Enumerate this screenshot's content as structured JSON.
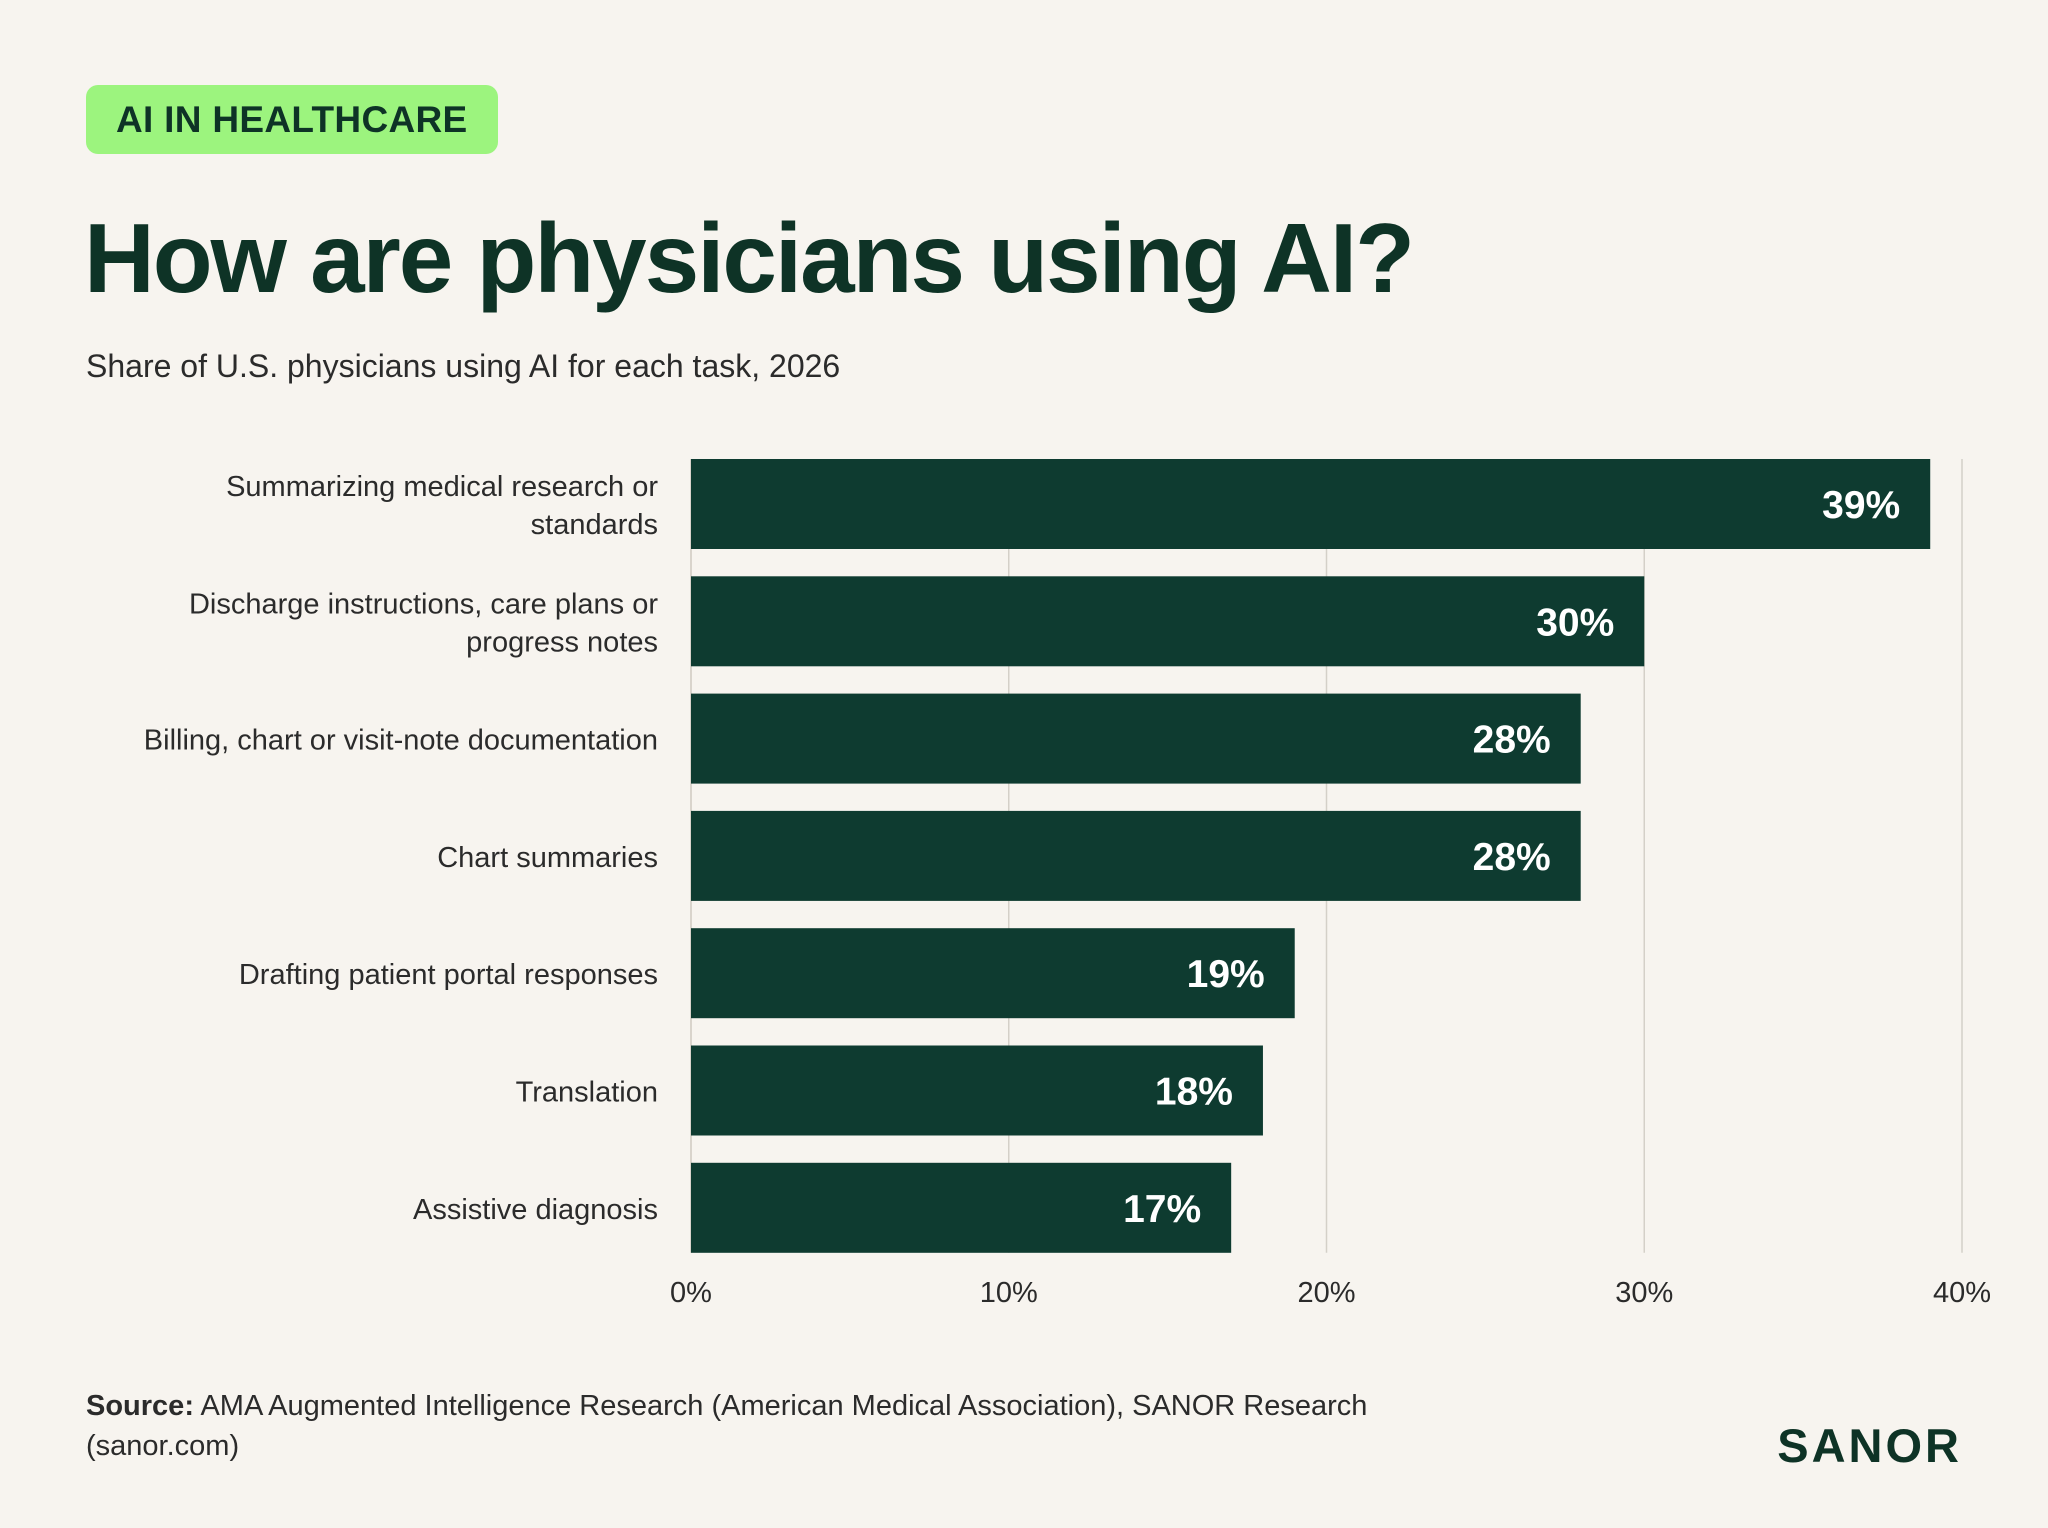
{
  "header": {
    "tag": "AI IN HEALTHCARE",
    "title": "How are physicians using AI?",
    "subtitle": "Share of U.S. physicians using AI for each task, 2026"
  },
  "chart_data": {
    "type": "bar",
    "orientation": "horizontal",
    "categories": [
      [
        "Summarizing medical research or",
        "standards"
      ],
      [
        "Discharge instructions, care plans or",
        "progress notes"
      ],
      [
        "Billing, chart or visit-note documentation"
      ],
      [
        "Chart summaries"
      ],
      [
        "Drafting patient portal responses"
      ],
      [
        "Translation"
      ],
      [
        "Assistive diagnosis"
      ]
    ],
    "values": [
      39,
      30,
      28,
      28,
      19,
      18,
      17
    ],
    "value_labels": [
      "39%",
      "30%",
      "28%",
      "28%",
      "19%",
      "18%",
      "17%"
    ],
    "xlim": [
      0,
      40
    ],
    "xticks": [
      0,
      10,
      20,
      30,
      40
    ],
    "xtick_labels": [
      "0%",
      "10%",
      "20%",
      "30%",
      "40%"
    ],
    "grid": "vertical",
    "bar_color": "#0e3b30",
    "label_color": "#ffffff"
  },
  "footer": {
    "source_label": "Source:",
    "source_text": " AMA Augmented Intelligence Research (American Medical Association), SANOR Research (sanor.com)",
    "logo": "SANOR"
  }
}
